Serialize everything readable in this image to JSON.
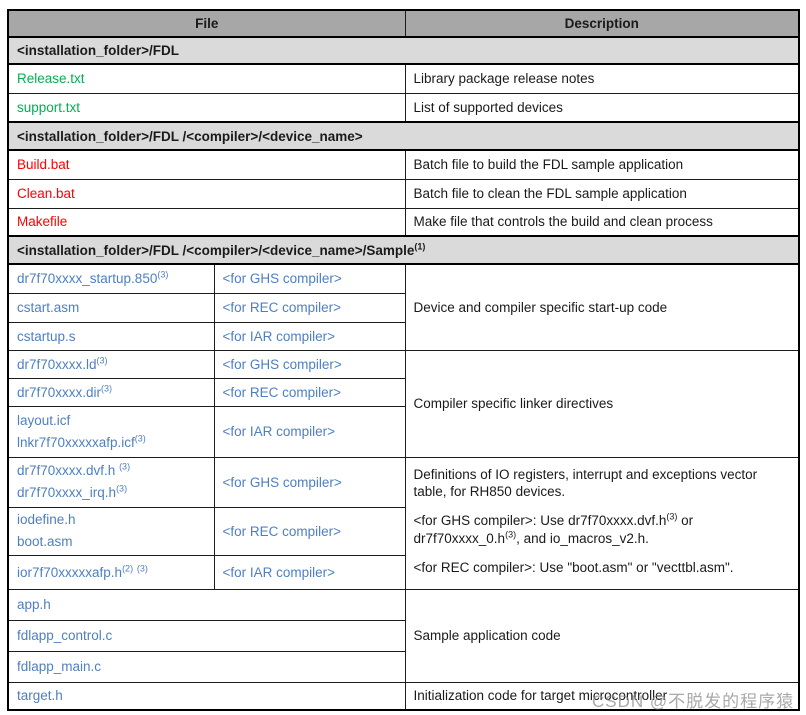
{
  "colors": {
    "header_bg": "#a7a7a7",
    "section_bg": "#dadada",
    "file_green": "#00b050",
    "file_red": "#ff0000",
    "file_blue": "#4e7fc1",
    "border": "#000000"
  },
  "table": {
    "header": {
      "file": "File",
      "description": "Description"
    },
    "sections": {
      "s1": "<installation_folder>/FDL",
      "s2": "<installation_folder>/FDL /<compiler>/<device_name>",
      "s3": {
        "text": "<installation_folder>/FDL /<compiler>/<device_name>/Sample",
        "sup": "(1)"
      }
    },
    "fdl_rows": [
      {
        "file": "Release.txt",
        "desc": "Library package release notes"
      },
      {
        "file": "support.txt",
        "desc": "List of supported devices"
      }
    ],
    "compiler_rows": [
      {
        "file": "Build.bat",
        "desc": "Batch file to build the FDL sample application"
      },
      {
        "file": "Clean.bat",
        "desc": "Batch file to clean the FDL sample application"
      },
      {
        "file": "Makefile",
        "desc": "Make file that controls the build and clean process"
      }
    ],
    "sample": {
      "startup": {
        "desc": "Device and compiler specific start-up code",
        "rows": [
          {
            "file": "dr7f70xxxx_startup.850",
            "sup": "(3)",
            "compiler": "<for GHS compiler>"
          },
          {
            "file": "cstart.asm",
            "compiler": "<for REC compiler>"
          },
          {
            "file": "cstartup.s",
            "compiler": "<for IAR compiler>"
          }
        ]
      },
      "linker": {
        "desc": "Compiler specific linker directives",
        "rows": [
          {
            "file": "dr7f70xxxx.ld",
            "sup": "(3)",
            "compiler": "<for GHS compiler>"
          },
          {
            "file": "dr7f70xxxx.dir",
            "sup": "(3)",
            "compiler": "<for REC compiler>"
          },
          {
            "file1": "layout.icf",
            "file2": "lnkr7f70xxxxxafp.icf",
            "sup2": "(3)",
            "compiler": "<for IAR compiler>"
          }
        ]
      },
      "registers": {
        "desc": {
          "p1": "Definitions of IO registers, interrupt and exceptions vector table, for RH850 devices.",
          "p2a": "<for GHS compiler>: Use dr7f70xxxx.dvf.h",
          "p2sup1": "(3)",
          "p2b": " or dr7f70xxxx_0.h",
          "p2sup2": "(3)",
          "p2c": ", and io_macros_v2.h.",
          "p3": "<for REC compiler>: Use \"boot.asm\" or \"vecttbl.asm\"."
        },
        "rows": [
          {
            "file1": "dr7f70xxxx.dvf.h ",
            "sup1": "(3)",
            "file2": "dr7f70xxxx_irq.h",
            "sup2": "(3)",
            "compiler": "<for GHS compiler>"
          },
          {
            "file1": "iodefine.h",
            "file2": "boot.asm",
            "compiler": "<for REC compiler>"
          },
          {
            "file": "ior7f70xxxxxafp.h",
            "sup1": "(2)",
            "sup2": "(3)",
            "compiler": "<for IAR compiler>"
          }
        ]
      },
      "app": {
        "desc": "Sample application code",
        "rows": [
          "app.h",
          "fdlapp_control.c",
          "fdlapp_main.c"
        ]
      },
      "target": {
        "file": "target.h",
        "desc": "Initialization code for target microcontroller"
      }
    }
  },
  "watermark": "CSDN @不脱发的程序猿"
}
